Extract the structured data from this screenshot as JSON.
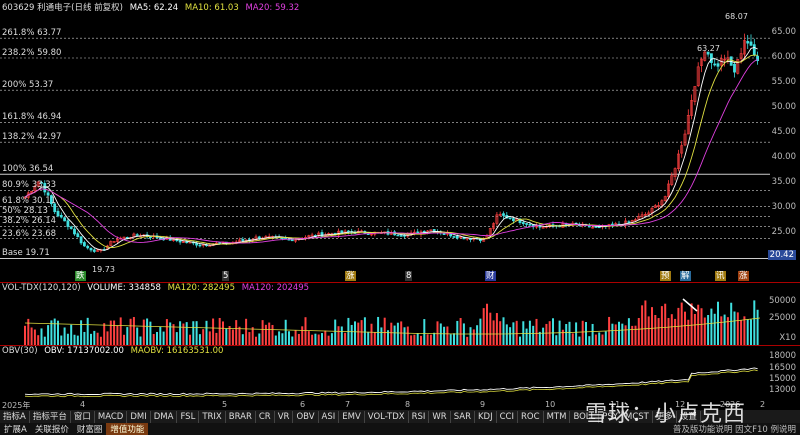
{
  "stock": {
    "title": "603629 利通电子(日线 前复权)",
    "ma5": "MA5: 62.24",
    "ma10": "MA10: 61.03",
    "ma20": "MA20: 59.32"
  },
  "price_axis": [
    "65.00",
    "60.00",
    "55.00",
    "50.00",
    "45.00",
    "40.00",
    "35.00",
    "30.00",
    "25.00",
    "20.42"
  ],
  "fib_levels": [
    {
      "label": "261.8% 63.77"
    },
    {
      "label": "238.2% 59.80"
    },
    {
      "label": "200% 53.37"
    },
    {
      "label": "161.8% 46.94"
    },
    {
      "label": "138.2% 42.97"
    },
    {
      "label": "100% 36.54"
    },
    {
      "label": "80.9% 33.33"
    },
    {
      "label": "61.8% 30.11"
    },
    {
      "label": "50% 28.13"
    },
    {
      "label": "38.2% 26.14"
    },
    {
      "label": "23.6% 23.68"
    },
    {
      "label": "Base 19.71"
    }
  ],
  "annotations": {
    "low": "19.73",
    "high": "68.07",
    "recent_high": "63.27"
  },
  "events": [
    {
      "label": "跌",
      "color": "#2a8a2a"
    },
    {
      "label": "5",
      "color": "#333"
    },
    {
      "label": "涨",
      "color": "#a07a10"
    },
    {
      "label": "8",
      "color": "#333"
    },
    {
      "label": "财",
      "color": "#2a3a9a"
    },
    {
      "label": "预",
      "color": "#a07a10"
    },
    {
      "label": "解",
      "color": "#2a6a9a"
    },
    {
      "label": "讯",
      "color": "#a07a10"
    },
    {
      "label": "涨",
      "color": "#a04010"
    }
  ],
  "vol": {
    "title": "VOL-TDX(120,120)",
    "volume": "VOLUME: 334858",
    "ma1": "MA120: 282495",
    "ma2": "MA120: 202495",
    "axis": [
      "50000",
      "25000",
      "X10"
    ]
  },
  "obv": {
    "title": "OBV(30)",
    "obv": "OBV: 17137002.00",
    "maobv": "MAOBV: 16163531.00",
    "axis": [
      "18000",
      "16500",
      "15000",
      "13000",
      "X1000"
    ]
  },
  "timeline": [
    "2025年",
    "4",
    "5",
    "6",
    "7",
    "8",
    "9",
    "10",
    "11",
    "12",
    "2026",
    "2"
  ],
  "toolbar": [
    "指标A",
    "指标平台",
    "窗口",
    "MACD",
    "DMI",
    "DMA",
    "FSL",
    "TRIX",
    "BRAR",
    "CR",
    "VR",
    "OBV",
    "ASI",
    "EMV",
    "VOL-TDX",
    "RSI",
    "WR",
    "SAR",
    "KDJ",
    "CCI",
    "ROC",
    "MTM",
    "BOLL",
    "PSY",
    "MCST",
    "更多",
    "设置"
  ],
  "statusbar": {
    "items": [
      "扩展A",
      "关联报价",
      "财富圈",
      "增值功能"
    ],
    "right": "普及版功能说明 因文F10 例说明"
  },
  "watermark": "雪球：小卢克西",
  "colors": {
    "up": "#ff4040",
    "down": "#40e0e0",
    "ma5": "#ffffff",
    "ma10": "#e0e040",
    "ma20": "#e040e0"
  }
}
